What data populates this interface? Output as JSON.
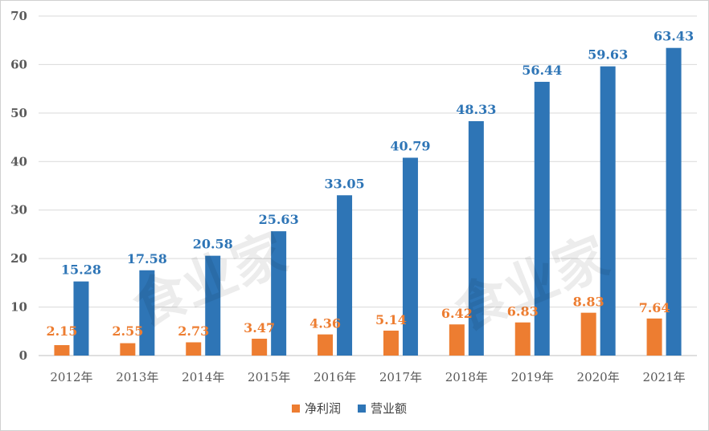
{
  "chart_data": {
    "type": "bar",
    "categories": [
      "2012年",
      "2013年",
      "2014年",
      "2015年",
      "2016年",
      "2017年",
      "2018年",
      "2019年",
      "2020年",
      "2021年"
    ],
    "series": [
      {
        "name": "净利润",
        "color": "#ed7d31",
        "values": [
          2.15,
          2.55,
          2.73,
          3.47,
          4.36,
          5.14,
          6.42,
          6.83,
          8.83,
          7.64
        ]
      },
      {
        "name": "营业额",
        "color": "#2e75b6",
        "values": [
          15.28,
          17.58,
          20.58,
          25.63,
          33.05,
          40.79,
          48.33,
          56.44,
          59.63,
          63.43
        ]
      }
    ],
    "ylim": [
      0,
      70
    ],
    "yticks": [
      0,
      10,
      20,
      30,
      40,
      50,
      60,
      70
    ],
    "grid": true,
    "legend_position": "bottom-center",
    "data_labels": true
  },
  "watermark": [
    "食业家",
    "食业家"
  ]
}
